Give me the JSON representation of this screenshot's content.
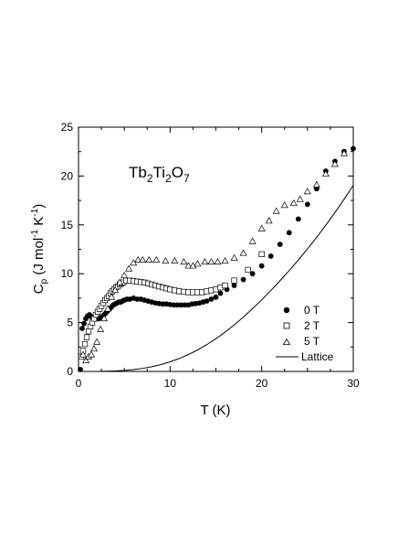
{
  "chart_data": {
    "type": "scatter",
    "annotation": {
      "base": [
        "Tb",
        "Ti",
        "O"
      ],
      "subs": [
        "2",
        "2",
        "7"
      ]
    },
    "xlabel": "T (K)",
    "ylabel": {
      "main": "C",
      "sub": "p",
      "units": " (J mol",
      "exp1": "-1",
      "mid": " K",
      "exp2": "-1",
      "close": ")"
    },
    "xlim": [
      0,
      30
    ],
    "ylim": [
      0,
      25
    ],
    "xticks": [
      "0",
      "10",
      "20",
      "30"
    ],
    "yticks": [
      "0",
      "5",
      "10",
      "15",
      "20",
      "25"
    ],
    "legend_position": "bottom-right",
    "series": [
      {
        "name": "0 T",
        "marker": "filled-circle",
        "x": [
          0.2,
          0.4,
          0.6,
          0.8,
          1.0,
          1.2,
          1.4,
          1.6,
          1.8,
          2.0,
          2.2,
          2.4,
          2.6,
          2.8,
          3.0,
          3.2,
          3.4,
          3.6,
          3.8,
          4.0,
          4.2,
          4.4,
          4.6,
          4.8,
          5.0,
          5.3,
          5.6,
          6.0,
          6.4,
          6.8,
          7.2,
          7.6,
          8.0,
          8.4,
          8.8,
          9.2,
          9.6,
          10.0,
          10.4,
          10.8,
          11.2,
          11.6,
          12.0,
          12.4,
          12.8,
          13.2,
          13.6,
          14.0,
          14.5,
          15.0,
          15.5,
          16.2,
          17.0,
          18.0,
          19.0,
          20.0,
          21.0,
          22.0,
          23.0,
          24.0,
          25.0,
          26.0,
          27.0,
          28.0,
          29.0,
          30.0
        ],
        "y": [
          0.2,
          4.4,
          4.9,
          5.4,
          5.7,
          5.8,
          5.6,
          5.5,
          5.4,
          5.4,
          5.4,
          5.5,
          5.6,
          5.8,
          6.0,
          6.2,
          6.4,
          6.6,
          6.8,
          6.9,
          7.0,
          7.1,
          7.1,
          7.2,
          7.3,
          7.4,
          7.4,
          7.5,
          7.4,
          7.4,
          7.3,
          7.2,
          7.1,
          7.0,
          6.95,
          6.9,
          6.9,
          6.85,
          6.8,
          6.8,
          6.8,
          6.8,
          6.8,
          6.9,
          6.95,
          7.0,
          7.1,
          7.2,
          7.4,
          7.6,
          8.0,
          8.4,
          8.8,
          9.4,
          10.0,
          10.8,
          11.8,
          13.0,
          14.2,
          15.6,
          17.1,
          18.7,
          20.5,
          21.5,
          22.5,
          22.8
        ]
      },
      {
        "name": "2 T",
        "marker": "open-square",
        "x": [
          0.3,
          0.5,
          0.7,
          0.9,
          1.1,
          1.3,
          1.5,
          1.7,
          1.9,
          2.1,
          2.3,
          2.5,
          2.7,
          2.9,
          3.1,
          3.3,
          3.5,
          3.7,
          3.9,
          4.1,
          4.3,
          4.5,
          4.7,
          4.9,
          5.2,
          5.6,
          6.0,
          6.4,
          6.8,
          7.2,
          7.6,
          8.0,
          8.4,
          8.8,
          9.2,
          9.6,
          10.0,
          10.5,
          11.0,
          11.5,
          12.0,
          12.5,
          13.0,
          13.5,
          14.0,
          14.5,
          15.0,
          15.5,
          16.0,
          17.0,
          18.5,
          20.0
        ],
        "y": [
          1.5,
          2.1,
          2.8,
          3.5,
          4.1,
          4.6,
          5.0,
          5.4,
          5.8,
          6.1,
          6.4,
          6.7,
          7.0,
          7.3,
          7.5,
          7.7,
          8.0,
          8.2,
          8.4,
          8.6,
          8.7,
          8.9,
          9.0,
          9.1,
          9.3,
          9.3,
          9.25,
          9.2,
          9.15,
          9.1,
          9.0,
          8.9,
          8.8,
          8.7,
          8.6,
          8.5,
          8.4,
          8.3,
          8.2,
          8.15,
          8.1,
          8.1,
          8.1,
          8.1,
          8.2,
          8.3,
          8.4,
          8.6,
          8.8,
          9.3,
          10.4,
          12.0
        ]
      },
      {
        "name": "5 T",
        "marker": "open-triangle",
        "x": [
          0.5,
          0.8,
          1.1,
          1.4,
          1.7,
          2.0,
          2.4,
          2.8,
          3.2,
          3.6,
          4.0,
          4.5,
          5.0,
          5.5,
          6.0,
          6.5,
          7.0,
          7.7,
          8.5,
          9.5,
          10.5,
          11.5,
          12.0,
          12.5,
          13.0,
          13.8,
          14.5,
          15.2,
          16.0,
          17.0,
          18.0,
          19.0,
          20.0,
          20.8,
          21.6,
          22.5,
          23.5,
          24.2,
          25.0,
          26.0,
          27.0,
          28.0,
          29.0
        ],
        "y": [
          1.7,
          1.1,
          1.5,
          1.7,
          2.3,
          3.0,
          4.3,
          5.4,
          6.4,
          7.6,
          8.3,
          9.1,
          9.8,
          10.5,
          11.1,
          11.4,
          11.4,
          11.4,
          11.4,
          11.3,
          11.3,
          11.2,
          10.8,
          10.8,
          11.0,
          11.2,
          11.2,
          11.2,
          11.3,
          11.6,
          12.1,
          13.3,
          14.6,
          15.4,
          16.4,
          17.0,
          17.2,
          17.6,
          18.4,
          19.1,
          20.2,
          21.2,
          22.3
        ]
      },
      {
        "name": "Lattice",
        "marker": "line",
        "x": [
          0,
          1,
          2,
          3,
          4,
          5,
          6,
          7,
          8,
          9,
          10,
          11,
          12,
          13,
          14,
          15,
          16,
          17,
          18,
          19,
          20,
          21,
          22,
          23,
          24,
          25,
          26,
          27,
          28,
          29,
          30
        ],
        "y": [
          0,
          0.0,
          0.0,
          0.02,
          0.05,
          0.1,
          0.19,
          0.31,
          0.48,
          0.7,
          0.98,
          1.32,
          1.73,
          2.2,
          2.74,
          3.35,
          4.02,
          4.76,
          5.56,
          6.42,
          7.32,
          8.28,
          9.28,
          10.32,
          11.4,
          12.54,
          13.72,
          14.96,
          16.26,
          17.62,
          19.04
        ]
      }
    ]
  }
}
